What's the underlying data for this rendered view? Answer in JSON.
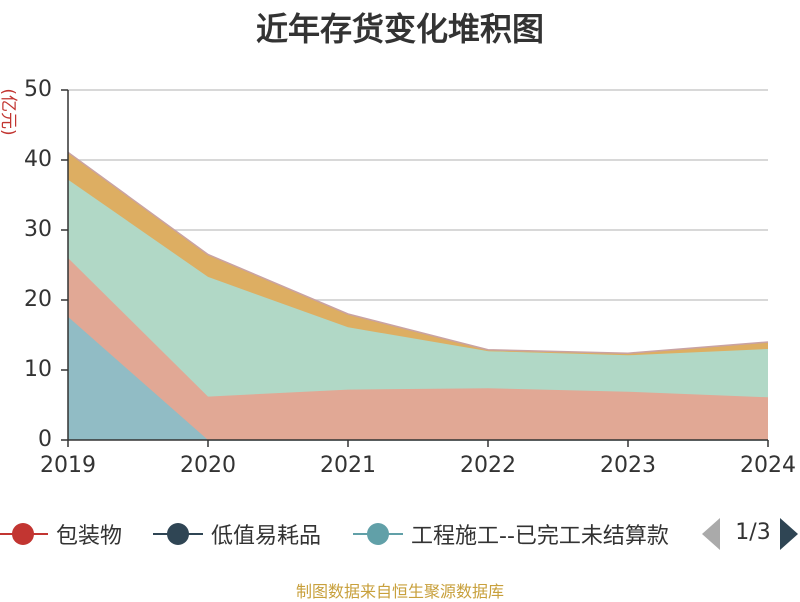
{
  "title": "近年存货变化堆积图",
  "source_note": "制图数据来自恒生聚源数据库",
  "legend_pager": {
    "text": "1/3",
    "prev_icon": "triangle-left-icon",
    "next_icon": "triangle-right-icon"
  },
  "legend": [
    {
      "name": "包装物",
      "color": "#c23531"
    },
    {
      "name": "低值易耗品",
      "color": "#2f4554"
    },
    {
      "name": "工程施工--已完工未结算款",
      "color": "#61a0a8"
    }
  ],
  "chart_data": {
    "type": "area",
    "stacked": true,
    "title": "近年存货变化堆积图",
    "ylabel": "(亿元)",
    "xlabel": "",
    "x": [
      "2019",
      "2020",
      "2021",
      "2022",
      "2023",
      "2024"
    ],
    "ylim": [
      0,
      50
    ],
    "yticks": [
      0,
      10,
      20,
      30,
      40,
      50
    ],
    "grid": true,
    "legend_position": "bottom",
    "series": [
      {
        "name": "",
        "color": "#91bcc5",
        "values": [
          17.6,
          0,
          0,
          0,
          0,
          0
        ]
      },
      {
        "name": "",
        "color": "#e1a895",
        "values": [
          8.4,
          6.2,
          7.2,
          7.4,
          6.9,
          6.1
        ]
      },
      {
        "name": "",
        "color": "#b1d8c6",
        "values": [
          11.2,
          17.1,
          8.9,
          5.3,
          5.2,
          6.9
        ]
      },
      {
        "name": "",
        "color": "#ddae62",
        "values": [
          3.8,
          3.1,
          1.8,
          0.1,
          0.2,
          0.9
        ]
      },
      {
        "name": "",
        "color": "#c9a3a3",
        "values": [
          0.1,
          0.1,
          0.1,
          0.1,
          0.1,
          0.1
        ]
      }
    ]
  }
}
